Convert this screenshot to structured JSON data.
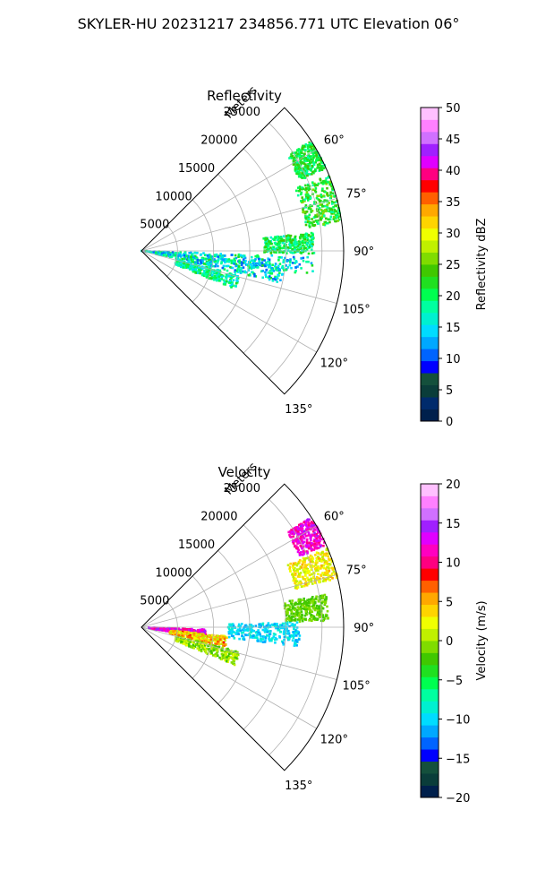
{
  "figure_title": "SKYLER-HU  20231217  234856.771 UTC Elevation 06°",
  "chart_data": [
    {
      "type": "heatmap",
      "projection": "polar-sector",
      "title": "Reflectivity",
      "range_axis_label": "Meters",
      "range_ticks": [
        5000,
        10000,
        15000,
        20000,
        25000
      ],
      "range_tick_labels": [
        "5000",
        "10000",
        "15000",
        "20000",
        "25000"
      ],
      "rmax": 28000,
      "azimuth_range_deg": [
        45,
        135
      ],
      "azimuth_tick_labels": [
        "60°",
        "75°",
        "90°",
        "105°",
        "120°",
        "135°"
      ],
      "azimuth_ticks_deg": [
        60,
        75,
        90,
        105,
        120,
        135
      ],
      "grid": true,
      "colorbar": {
        "label": "Reflectivity dBZ",
        "range": [
          0,
          50
        ],
        "ticks": [
          0,
          5,
          10,
          15,
          20,
          25,
          30,
          35,
          40,
          45,
          50
        ],
        "tick_labels": [
          "0",
          "5",
          "10",
          "15",
          "20",
          "25",
          "30",
          "35",
          "40",
          "45",
          "50"
        ],
        "colormap": "pyart_NWSRef",
        "colors": [
          "#00204c",
          "#002b6c",
          "#0a3d3a",
          "#14503c",
          "#0000ff",
          "#0064ff",
          "#00a8ff",
          "#00dcff",
          "#00f0d0",
          "#00ffa0",
          "#00ff50",
          "#20e020",
          "#40c800",
          "#80dc00",
          "#c0f000",
          "#f0ff00",
          "#ffd400",
          "#ffa800",
          "#ff6000",
          "#ff0000",
          "#ff0080",
          "#e000ff",
          "#a020ff",
          "#d070ff",
          "#ff80ff",
          "#ffc0ff"
        ]
      },
      "echo_regions": [
        {
          "azimuth_deg": [
            92,
            98
          ],
          "range_m": [
            0,
            24000
          ],
          "value_range": [
            10,
            22
          ]
        },
        {
          "azimuth_deg": [
            96,
            103
          ],
          "range_m": [
            2000,
            20000
          ],
          "value_range": [
            10,
            22
          ]
        },
        {
          "azimuth_deg": [
            68,
            82
          ],
          "range_m": [
            23000,
            28000
          ],
          "value_range": [
            18,
            26
          ]
        },
        {
          "azimuth_deg": [
            57,
            66
          ],
          "range_m": [
            24000,
            28000
          ],
          "value_range": [
            18,
            24
          ]
        },
        {
          "azimuth_deg": [
            104,
            112
          ],
          "range_m": [
            5000,
            14000
          ],
          "value_range": [
            14,
            22
          ]
        },
        {
          "azimuth_deg": [
            84,
            91
          ],
          "range_m": [
            17000,
            24000
          ],
          "value_range": [
            16,
            24
          ]
        }
      ]
    },
    {
      "type": "heatmap",
      "projection": "polar-sector",
      "title": "Velocity",
      "range_axis_label": "Meters",
      "range_ticks": [
        5000,
        10000,
        15000,
        20000,
        25000
      ],
      "range_tick_labels": [
        "5000",
        "10000",
        "15000",
        "20000",
        "25000"
      ],
      "rmax": 28000,
      "azimuth_range_deg": [
        45,
        135
      ],
      "azimuth_tick_labels": [
        "60°",
        "75°",
        "90°",
        "105°",
        "120°",
        "135°"
      ],
      "azimuth_ticks_deg": [
        60,
        75,
        90,
        105,
        120,
        135
      ],
      "grid": true,
      "colorbar": {
        "label": "Velocity (m/s)",
        "range": [
          -20,
          20
        ],
        "ticks": [
          -20,
          -15,
          -10,
          -5,
          0,
          5,
          10,
          15,
          20
        ],
        "tick_labels": [
          "−20",
          "−15",
          "−10",
          "−5",
          "0",
          "5",
          "10",
          "15",
          "20"
        ],
        "colormap": "pyart_BuDRd18",
        "colors": [
          "#00204c",
          "#0a3d3a",
          "#14503c",
          "#0000ff",
          "#0064ff",
          "#00a8ff",
          "#00dcff",
          "#00f0d0",
          "#00ffa0",
          "#00ff50",
          "#20e020",
          "#40c800",
          "#80dc00",
          "#c0f000",
          "#f0ff00",
          "#ffd400",
          "#ffa800",
          "#ff6000",
          "#ff0000",
          "#ff0080",
          "#ff00c0",
          "#e000ff",
          "#a020ff",
          "#d070ff",
          "#ff80ff",
          "#ffc0ff"
        ]
      },
      "echo_regions": [
        {
          "azimuth_deg": [
            92,
            99
          ],
          "range_m": [
            1000,
            9000
          ],
          "value_range": [
            10,
            15
          ]
        },
        {
          "azimuth_deg": [
            96,
            103
          ],
          "range_m": [
            4000,
            12000
          ],
          "value_range": [
            0,
            8
          ]
        },
        {
          "azimuth_deg": [
            88,
            97
          ],
          "range_m": [
            12000,
            22000
          ],
          "value_range": [
            -12,
            -8
          ]
        },
        {
          "azimuth_deg": [
            67,
            76
          ],
          "range_m": [
            22000,
            28000
          ],
          "value_range": [
            0,
            5
          ]
        },
        {
          "azimuth_deg": [
            57,
            66
          ],
          "range_m": [
            24000,
            28000
          ],
          "value_range": [
            10,
            14
          ]
        },
        {
          "azimuth_deg": [
            80,
            88
          ],
          "range_m": [
            20000,
            26000
          ],
          "value_range": [
            -3,
            0
          ]
        },
        {
          "azimuth_deg": [
            104,
            112
          ],
          "range_m": [
            5000,
            14000
          ],
          "value_range": [
            -3,
            2
          ]
        }
      ]
    }
  ]
}
